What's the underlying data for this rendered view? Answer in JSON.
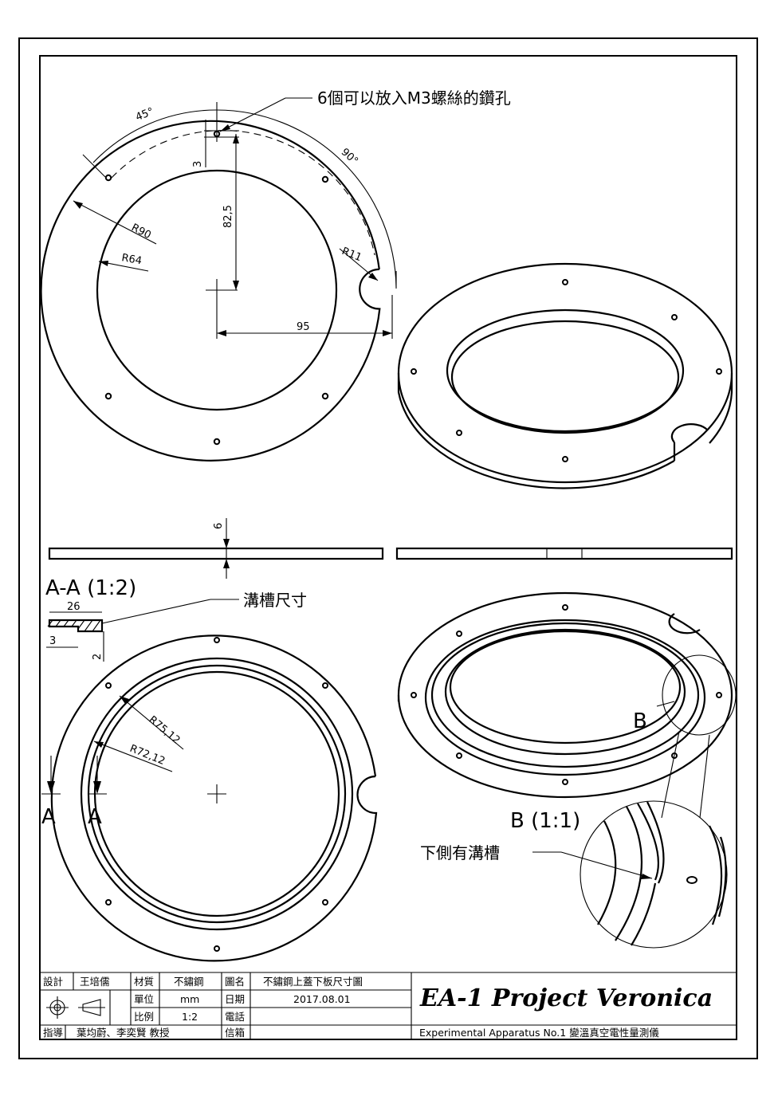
{
  "views": {
    "top": {
      "holes_note": "6個可以放入M3螺絲的鑽孔",
      "angle_45": "45°",
      "angle_90": "90°",
      "dim_3": "3",
      "dim_82_5": "82,5",
      "dim_95": "95",
      "r90": "R90",
      "r64": "R64",
      "r11": "R11"
    },
    "side": {
      "dim_6": "6"
    },
    "section": {
      "title": "A-A (1:2)",
      "groove_note": "溝槽尺寸",
      "dim_26": "26",
      "dim_3": "3",
      "dim_2": "2",
      "cut_label_left": "A",
      "cut_label_right": "A",
      "r75": "R75,12",
      "r72": "R72,12"
    },
    "iso_bottom": {
      "detail_label": "B",
      "detail_title": "B (1:1)",
      "detail_note": "下側有溝槽"
    }
  },
  "title_block": {
    "design_label": "設計",
    "designer": "王培儒",
    "material_label": "材質",
    "material": "不鏽鋼",
    "drawing_name_label": "圖名",
    "drawing_name": "不鏽鋼上蓋下板尺寸圖",
    "unit_label": "單位",
    "unit": "mm",
    "date_label": "日期",
    "date": "2017.08.01",
    "scale_label": "比例",
    "scale": "1:2",
    "phone_label": "電話",
    "phone": "",
    "advisor_label": "指導",
    "advisors": "葉均蔚、李奕賢 教授",
    "mailbox_label": "信箱",
    "mailbox": "",
    "project_title": "EA-1 Project Veronica",
    "project_subtitle": "Experimental Apparatus No.1 變溫真空電性量測儀"
  }
}
